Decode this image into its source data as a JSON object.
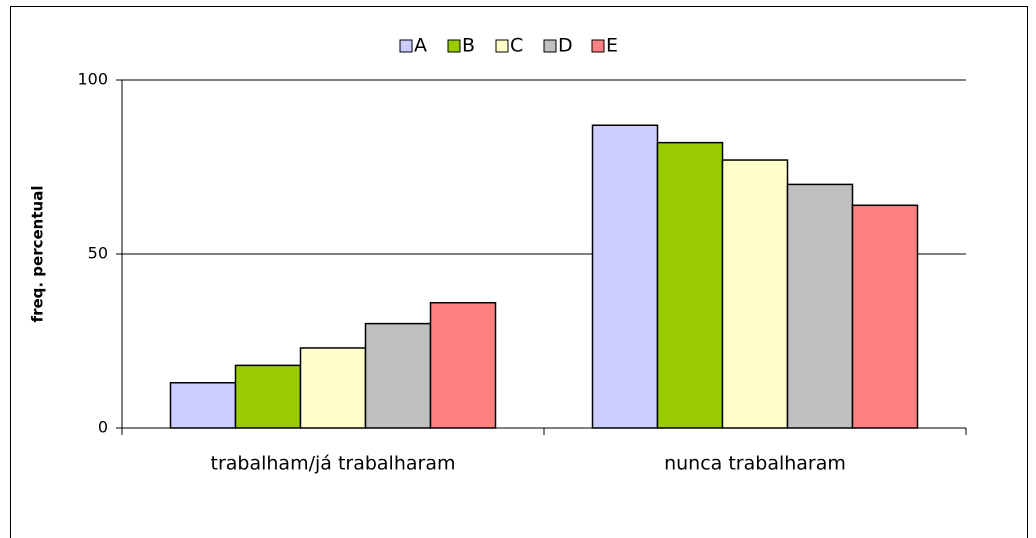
{
  "chart_data": {
    "type": "bar",
    "y_label": "freq. percentual",
    "categories": [
      "trabalham/já trabalharam",
      "nunca trabalharam"
    ],
    "series": [
      {
        "name": "A",
        "color": "#ccccff",
        "values": [
          13,
          87
        ]
      },
      {
        "name": "B",
        "color": "#99cc00",
        "values": [
          18,
          82
        ]
      },
      {
        "name": "C",
        "color": "#ffffcc",
        "values": [
          23,
          77
        ]
      },
      {
        "name": "D",
        "color": "#c0c0c0",
        "values": [
          30,
          70
        ]
      },
      {
        "name": "E",
        "color": "#ff8080",
        "values": [
          36,
          64
        ]
      }
    ],
    "ylim": [
      0,
      100
    ],
    "yticks": [
      0,
      50,
      100
    ],
    "grid": true,
    "legend": "top"
  }
}
